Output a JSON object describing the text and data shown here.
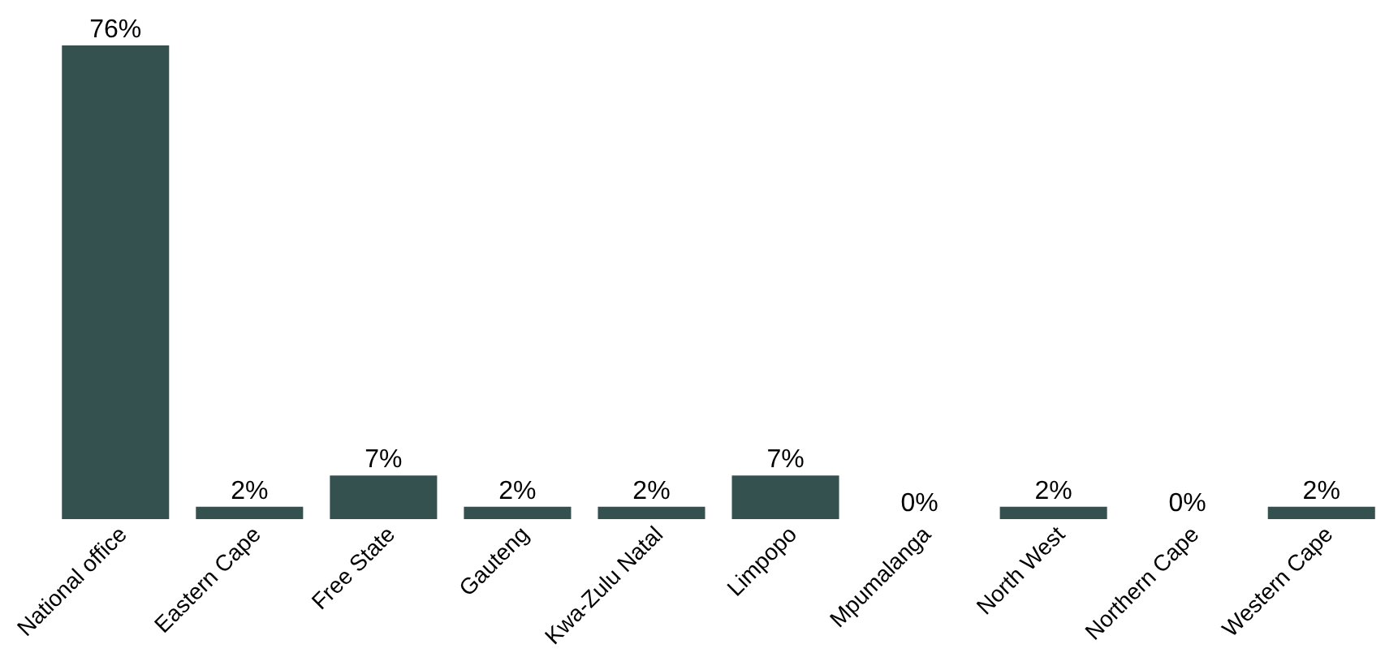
{
  "chart_data": {
    "type": "bar",
    "categories": [
      "National office",
      "Eastern Cape",
      "Free State",
      "Gauteng",
      "Kwa-Zulu Natal",
      "Limpopo",
      "Mpumalanga",
      "North West",
      "Northern Cape",
      "Western Cape"
    ],
    "values": [
      76,
      2,
      7,
      2,
      2,
      7,
      0,
      2,
      0,
      2
    ],
    "value_labels": [
      "76%",
      "2%",
      "7%",
      "2%",
      "2%",
      "7%",
      "0%",
      "2%",
      "0%",
      "2%"
    ],
    "color": "#34504f"
  }
}
